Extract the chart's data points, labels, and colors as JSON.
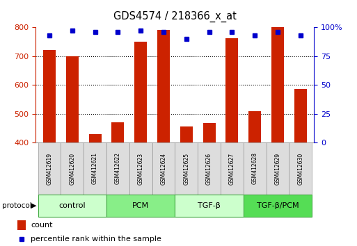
{
  "title": "GDS4574 / 218366_x_at",
  "samples": [
    "GSM412619",
    "GSM412620",
    "GSM412621",
    "GSM412622",
    "GSM412623",
    "GSM412624",
    "GSM412625",
    "GSM412626",
    "GSM412627",
    "GSM412628",
    "GSM412629",
    "GSM412630"
  ],
  "count_values": [
    720,
    700,
    430,
    470,
    750,
    790,
    455,
    468,
    762,
    510,
    800,
    585
  ],
  "percentile_values": [
    93,
    97,
    96,
    96,
    97,
    96,
    90,
    96,
    96,
    93,
    96,
    93
  ],
  "groups": [
    {
      "label": "control",
      "start": 0,
      "end": 3,
      "color": "#ccffcc"
    },
    {
      "label": "PCM",
      "start": 3,
      "end": 6,
      "color": "#88ee88"
    },
    {
      "label": "TGF-β",
      "start": 6,
      "end": 9,
      "color": "#ccffcc"
    },
    {
      "label": "TGF-β/PCM",
      "start": 9,
      "end": 12,
      "color": "#55dd55"
    }
  ],
  "ylim_left": [
    400,
    800
  ],
  "ylim_right": [
    0,
    100
  ],
  "yticks_left": [
    400,
    500,
    600,
    700,
    800
  ],
  "yticks_right": [
    0,
    25,
    50,
    75,
    100
  ],
  "ytick_right_labels": [
    "0",
    "25",
    "50",
    "75",
    "100%"
  ],
  "bar_color": "#cc2200",
  "dot_color": "#0000cc",
  "bar_base": 400,
  "grid_dotted_at": [
    500,
    600,
    700
  ]
}
